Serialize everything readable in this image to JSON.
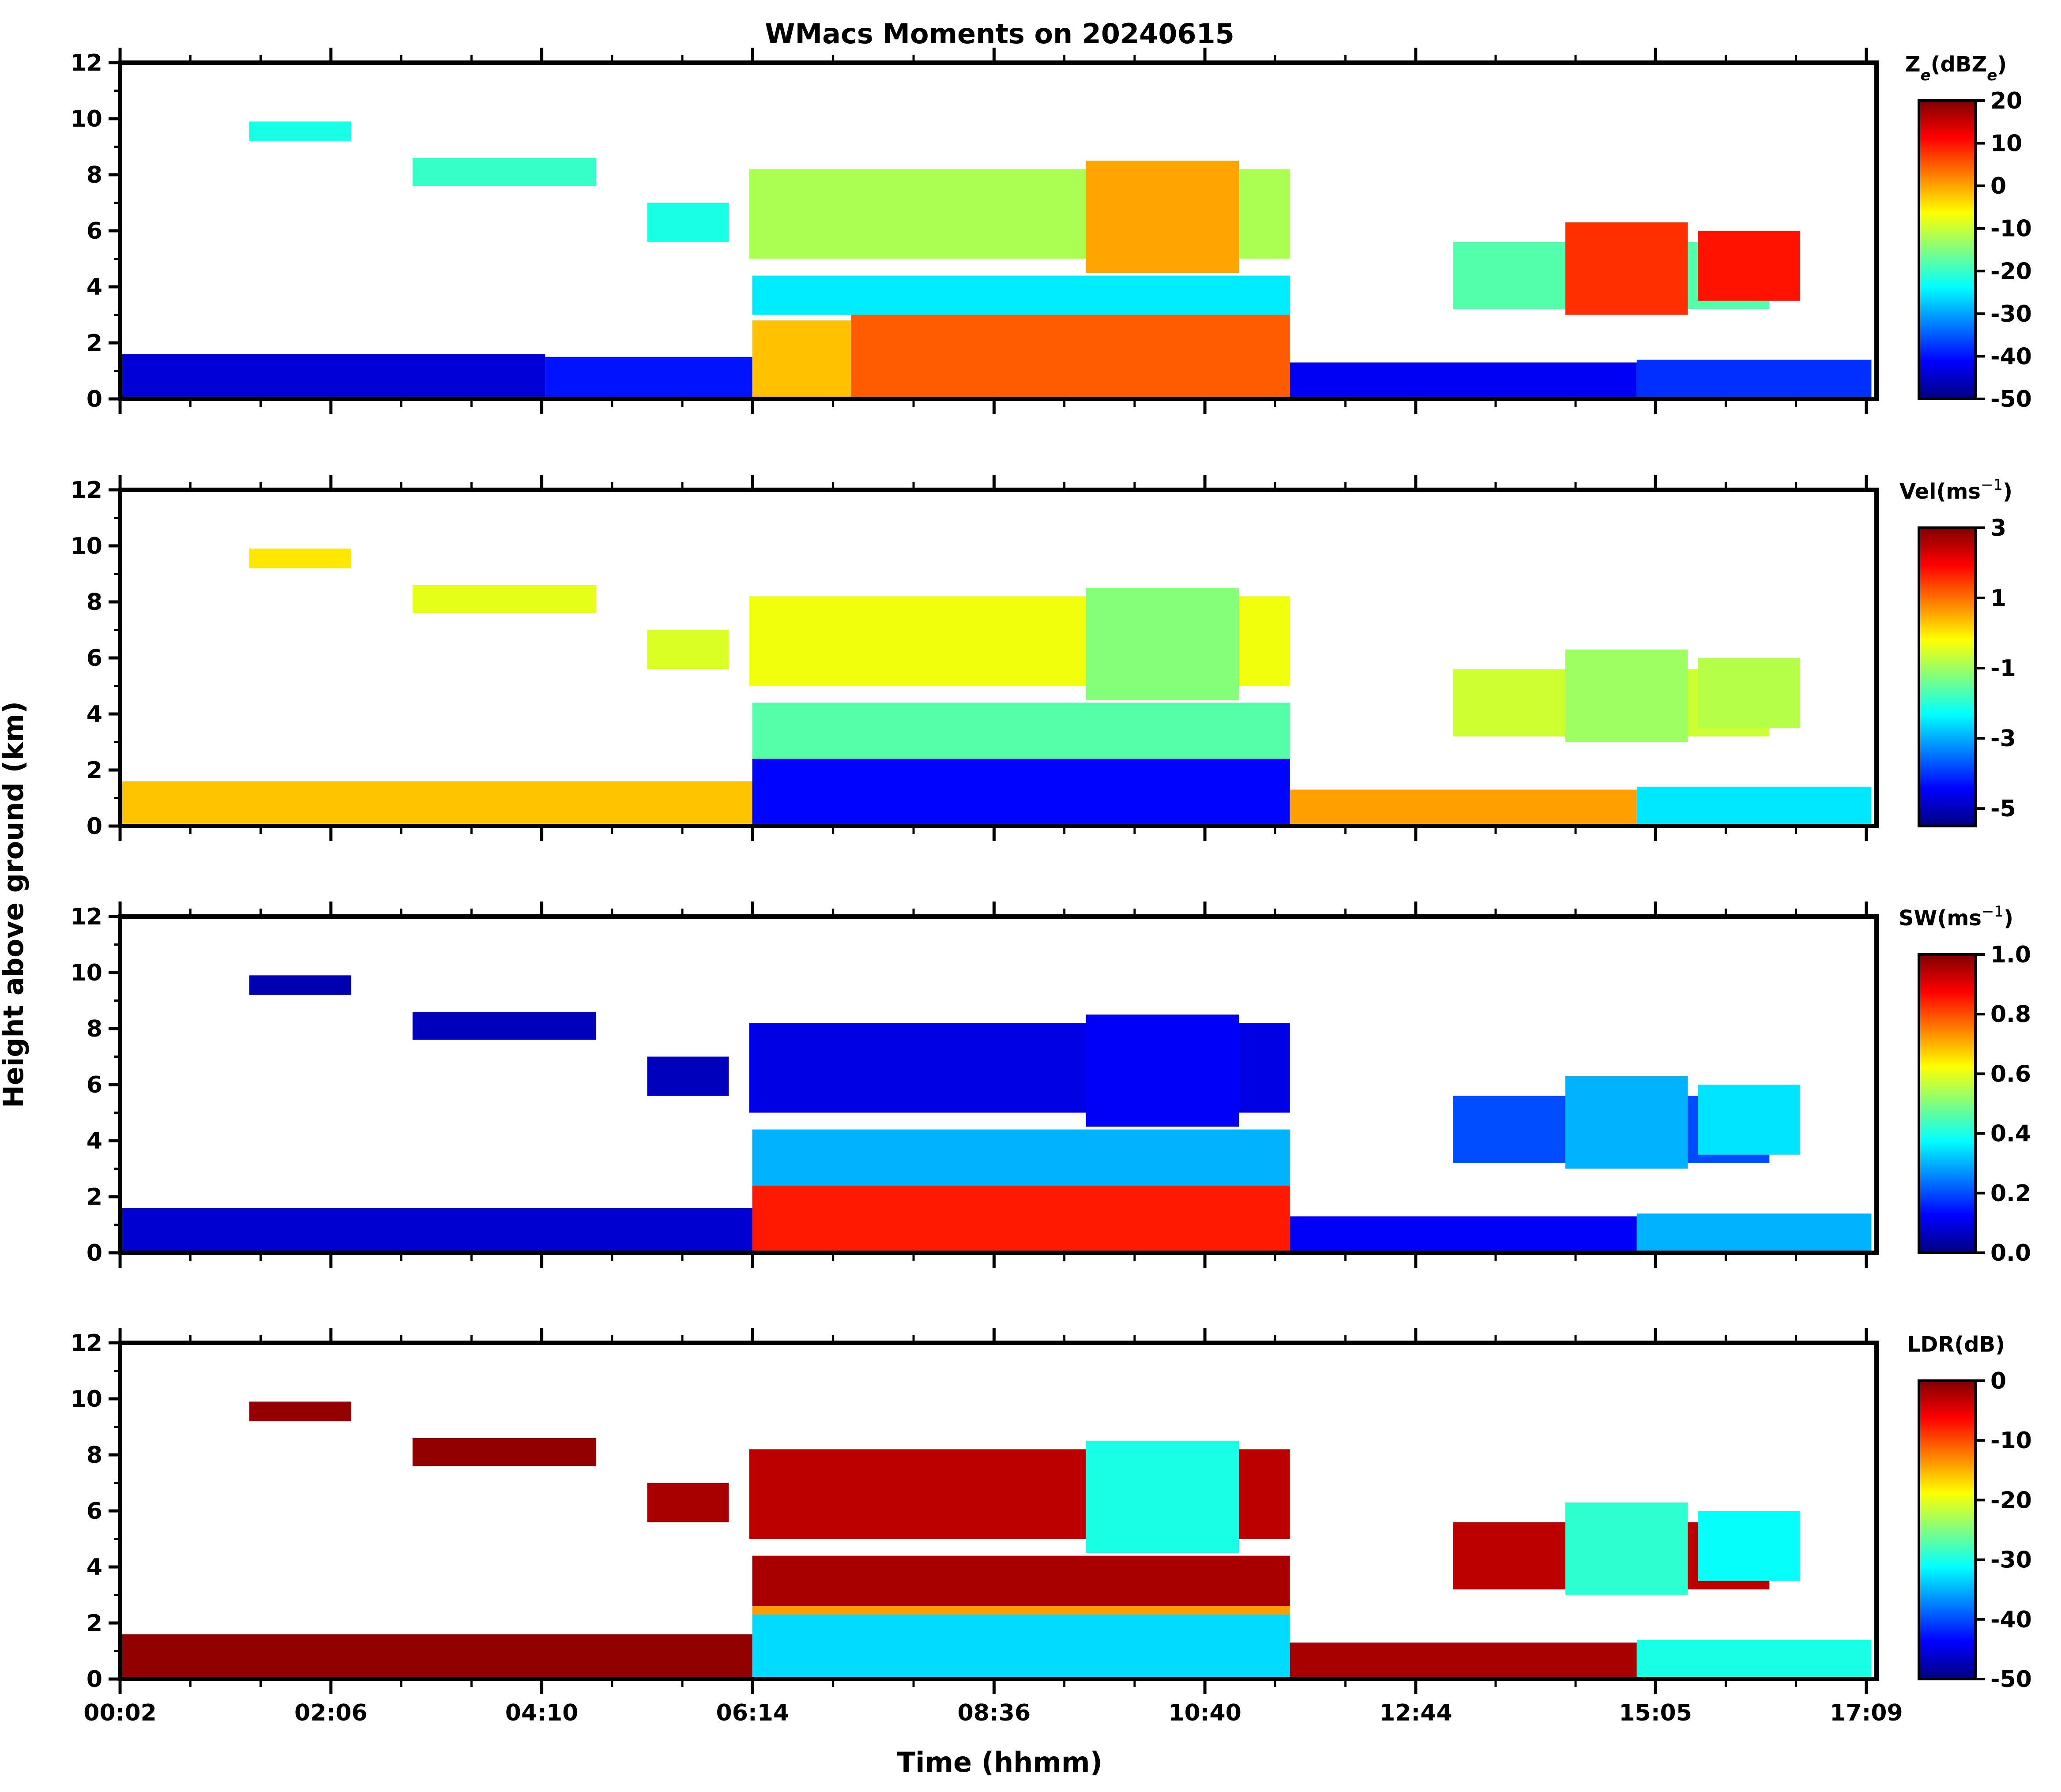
{
  "chart_data": {
    "type": "heatmap",
    "title": "WMacs Moments on 20240615",
    "xlabel": "Time (hhmm)",
    "ylabel": "Height above ground (km)",
    "x_range_hours": [
      0.033,
      17.25
    ],
    "x_ticks": [
      {
        "t": 0.0333,
        "label": "00:02"
      },
      {
        "t": 2.1,
        "label": "02:06"
      },
      {
        "t": 4.1667,
        "label": "04:10"
      },
      {
        "t": 6.2333,
        "label": "06:14"
      },
      {
        "t": 8.6,
        "label": "08:36"
      },
      {
        "t": 10.6667,
        "label": "10:40"
      },
      {
        "t": 12.7333,
        "label": "12:44"
      },
      {
        "t": 15.0833,
        "label": "15:05"
      },
      {
        "t": 17.15,
        "label": "17:09"
      }
    ],
    "y_range_km": [
      0,
      12
    ],
    "y_ticks": [
      "0",
      "2",
      "4",
      "6",
      "8",
      "10",
      "12"
    ],
    "colormap": [
      "#00007f",
      "#0000ff",
      "#007fff",
      "#00ffff",
      "#7fff7f",
      "#ffff00",
      "#ff7f00",
      "#ff0000",
      "#7f0000"
    ],
    "panels": [
      {
        "name": "Ze",
        "colorbar_label": "Ze(dBZe)",
        "colorbar_label_main": "Z",
        "colorbar_label_sub": "e",
        "colorbar_label_mid": "(dBZ",
        "colorbar_label_sub2": "e",
        "colorbar_label_end": ")",
        "vmin": -50,
        "vmax": 20,
        "colorbar_ticks": [
          "20",
          "10",
          "0",
          "-10",
          "-20",
          "-30",
          "-40",
          "-50"
        ],
        "regions": [
          {
            "t0": 0.03,
            "t1": 4.2,
            "h0": 0.0,
            "h1": 1.6,
            "v": -44
          },
          {
            "t0": 4.2,
            "t1": 6.23,
            "h0": 0.0,
            "h1": 1.5,
            "v": -40
          },
          {
            "t0": 6.23,
            "t1": 7.2,
            "h0": 0.0,
            "h1": 2.8,
            "v": -2
          },
          {
            "t0": 7.2,
            "t1": 11.5,
            "h0": 0.0,
            "h1": 3.0,
            "v": 5
          },
          {
            "t0": 11.5,
            "t1": 14.9,
            "h0": 0.0,
            "h1": 1.3,
            "v": -42
          },
          {
            "t0": 14.9,
            "t1": 17.2,
            "h0": 0.0,
            "h1": 1.4,
            "v": -38
          },
          {
            "t0": 6.23,
            "t1": 11.5,
            "h0": 3.0,
            "h1": 4.4,
            "v": -25
          },
          {
            "t0": 6.2,
            "t1": 11.5,
            "h0": 5.0,
            "h1": 8.2,
            "v": -12
          },
          {
            "t0": 9.5,
            "t1": 11.0,
            "h0": 4.5,
            "h1": 8.5,
            "v": 0
          },
          {
            "t0": 13.1,
            "t1": 16.2,
            "h0": 3.2,
            "h1": 5.6,
            "v": -18
          },
          {
            "t0": 14.2,
            "t1": 15.4,
            "h0": 3.0,
            "h1": 6.3,
            "v": 8
          },
          {
            "t0": 15.5,
            "t1": 16.5,
            "h0": 3.5,
            "h1": 6.0,
            "v": 10
          },
          {
            "t0": 5.2,
            "t1": 6.0,
            "h0": 5.6,
            "h1": 7.0,
            "v": -22
          },
          {
            "t0": 2.9,
            "t1": 4.7,
            "h0": 7.6,
            "h1": 8.6,
            "v": -20
          },
          {
            "t0": 1.3,
            "t1": 2.3,
            "h0": 9.2,
            "h1": 9.9,
            "v": -22
          }
        ]
      },
      {
        "name": "Vel",
        "colorbar_label": "Vel(ms^-1)",
        "colorbar_label_main": "Vel(ms",
        "colorbar_label_sup": "−1",
        "colorbar_label_end": ")",
        "vmin": -5.5,
        "vmax": 3,
        "colorbar_ticks": [
          "3",
          "1",
          "-1",
          "-3",
          "-5"
        ],
        "regions": [
          {
            "t0": 0.03,
            "t1": 6.23,
            "h0": 0.0,
            "h1": 1.6,
            "v": 0.3
          },
          {
            "t0": 6.23,
            "t1": 11.5,
            "h0": 0.0,
            "h1": 2.4,
            "v": -4.4
          },
          {
            "t0": 11.5,
            "t1": 14.9,
            "h0": 0.0,
            "h1": 1.3,
            "v": 0.6
          },
          {
            "t0": 14.9,
            "t1": 17.2,
            "h0": 0.0,
            "h1": 1.4,
            "v": -2.5
          },
          {
            "t0": 6.23,
            "t1": 11.5,
            "h0": 2.4,
            "h1": 4.4,
            "v": -1.6
          },
          {
            "t0": 6.2,
            "t1": 11.5,
            "h0": 5.0,
            "h1": 8.2,
            "v": -0.3
          },
          {
            "t0": 9.5,
            "t1": 11.0,
            "h0": 4.5,
            "h1": 8.5,
            "v": -1.2
          },
          {
            "t0": 13.1,
            "t1": 16.2,
            "h0": 3.2,
            "h1": 5.6,
            "v": -0.6
          },
          {
            "t0": 14.2,
            "t1": 15.4,
            "h0": 3.0,
            "h1": 6.3,
            "v": -1.0
          },
          {
            "t0": 15.5,
            "t1": 16.5,
            "h0": 3.5,
            "h1": 6.0,
            "v": -0.8
          },
          {
            "t0": 5.2,
            "t1": 6.0,
            "h0": 5.6,
            "h1": 7.0,
            "v": -0.5
          },
          {
            "t0": 2.9,
            "t1": 4.7,
            "h0": 7.6,
            "h1": 8.6,
            "v": -0.4
          },
          {
            "t0": 1.3,
            "t1": 2.3,
            "h0": 9.2,
            "h1": 9.9,
            "v": 0.0
          }
        ]
      },
      {
        "name": "SW",
        "colorbar_label": "SW(ms^-1)",
        "colorbar_label_main": "SW(ms",
        "colorbar_label_sup": "−1",
        "colorbar_label_end": ")",
        "vmin": 0,
        "vmax": 1.0,
        "colorbar_ticks": [
          "1.0",
          "0.8",
          "0.6",
          "0.4",
          "0.2",
          "0.0"
        ],
        "regions": [
          {
            "t0": 0.03,
            "t1": 6.23,
            "h0": 0.0,
            "h1": 1.6,
            "v": 0.08
          },
          {
            "t0": 6.23,
            "t1": 11.5,
            "h0": 0.0,
            "h1": 2.4,
            "v": 0.85
          },
          {
            "t0": 11.5,
            "t1": 14.9,
            "h0": 0.0,
            "h1": 1.3,
            "v": 0.12
          },
          {
            "t0": 14.9,
            "t1": 17.2,
            "h0": 0.0,
            "h1": 1.4,
            "v": 0.3
          },
          {
            "t0": 6.23,
            "t1": 11.5,
            "h0": 2.4,
            "h1": 4.4,
            "v": 0.3
          },
          {
            "t0": 6.2,
            "t1": 11.5,
            "h0": 5.0,
            "h1": 8.2,
            "v": 0.1
          },
          {
            "t0": 9.5,
            "t1": 11.0,
            "h0": 4.5,
            "h1": 8.5,
            "v": 0.12
          },
          {
            "t0": 13.1,
            "t1": 16.2,
            "h0": 3.2,
            "h1": 5.6,
            "v": 0.2
          },
          {
            "t0": 14.2,
            "t1": 15.4,
            "h0": 3.0,
            "h1": 6.3,
            "v": 0.3
          },
          {
            "t0": 15.5,
            "t1": 16.5,
            "h0": 3.5,
            "h1": 6.0,
            "v": 0.35
          },
          {
            "t0": 5.2,
            "t1": 6.0,
            "h0": 5.6,
            "h1": 7.0,
            "v": 0.06
          },
          {
            "t0": 2.9,
            "t1": 4.7,
            "h0": 7.6,
            "h1": 8.6,
            "v": 0.06
          },
          {
            "t0": 1.3,
            "t1": 2.3,
            "h0": 9.2,
            "h1": 9.9,
            "v": 0.05
          }
        ]
      },
      {
        "name": "LDR",
        "colorbar_label": "LDR(dB)",
        "colorbar_label_main": "LDR(dB)",
        "vmin": -50,
        "vmax": 0,
        "colorbar_ticks": [
          "0",
          "-10",
          "-20",
          "-30",
          "-40",
          "-50"
        ],
        "regions": [
          {
            "t0": 0.03,
            "t1": 6.23,
            "h0": 0.0,
            "h1": 1.6,
            "v": -1
          },
          {
            "t0": 6.23,
            "t1": 11.5,
            "h0": 0.0,
            "h1": 2.3,
            "v": -33
          },
          {
            "t0": 6.23,
            "t1": 11.5,
            "h0": 2.3,
            "h1": 2.6,
            "v": -14
          },
          {
            "t0": 11.5,
            "t1": 14.9,
            "h0": 0.0,
            "h1": 1.3,
            "v": -2
          },
          {
            "t0": 14.9,
            "t1": 17.2,
            "h0": 0.0,
            "h1": 1.4,
            "v": -30
          },
          {
            "t0": 6.23,
            "t1": 11.5,
            "h0": 2.6,
            "h1": 4.4,
            "v": -2
          },
          {
            "t0": 6.2,
            "t1": 11.5,
            "h0": 5.0,
            "h1": 8.2,
            "v": -3
          },
          {
            "t0": 9.5,
            "t1": 11.0,
            "h0": 4.5,
            "h1": 8.5,
            "v": -30
          },
          {
            "t0": 13.1,
            "t1": 16.2,
            "h0": 3.2,
            "h1": 5.6,
            "v": -3
          },
          {
            "t0": 14.2,
            "t1": 15.4,
            "h0": 3.0,
            "h1": 6.3,
            "v": -29
          },
          {
            "t0": 15.5,
            "t1": 16.5,
            "h0": 3.5,
            "h1": 6.0,
            "v": -31
          },
          {
            "t0": 5.2,
            "t1": 6.0,
            "h0": 5.6,
            "h1": 7.0,
            "v": -2
          },
          {
            "t0": 2.9,
            "t1": 4.7,
            "h0": 7.6,
            "h1": 8.6,
            "v": -1
          },
          {
            "t0": 1.3,
            "t1": 2.3,
            "h0": 9.2,
            "h1": 9.9,
            "v": -1
          }
        ]
      }
    ]
  }
}
